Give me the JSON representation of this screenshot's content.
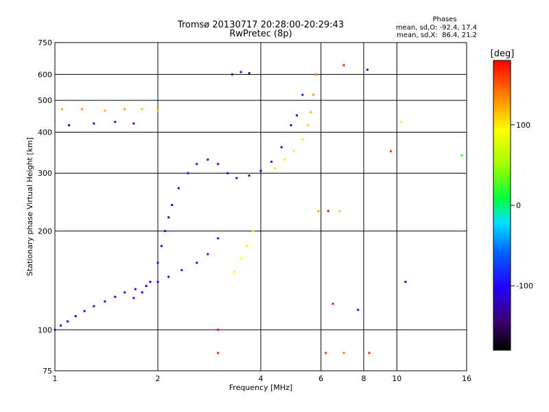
{
  "chart_data": {
    "type": "scatter",
    "title": "Tromsø 20130717 20:28:00-20:29:43",
    "subtitle": "RwPretec (8p)",
    "stats": {
      "heading": "Phases",
      "line_o": "mean, sd,O: -92.4, 17.4",
      "line_x": "mean, sd,X:  86.4, 21.2"
    },
    "xlabel": "Frequency [MHz]",
    "ylabel": "Stationary phase Virtual Height [km]",
    "x_scale": "log",
    "y_scale": "log",
    "xlim": [
      1,
      16
    ],
    "ylim": [
      75,
      750
    ],
    "x_ticks": [
      {
        "v": 1,
        "label": "1"
      },
      {
        "v": 2,
        "label": "2"
      },
      {
        "v": 4,
        "label": "4"
      },
      {
        "v": 6,
        "label": "6"
      },
      {
        "v": 8,
        "label": "8"
      },
      {
        "v": 10,
        "label": "10"
      },
      {
        "v": 16,
        "label": "16"
      }
    ],
    "x_grid": [
      2,
      4,
      6,
      8,
      10
    ],
    "y_ticks": [
      {
        "v": 75,
        "label": "75"
      },
      {
        "v": 100,
        "label": "100"
      },
      {
        "v": 200,
        "label": "200"
      },
      {
        "v": 300,
        "label": "300"
      },
      {
        "v": 400,
        "label": "400"
      },
      {
        "v": 500,
        "label": "500"
      },
      {
        "v": 600,
        "label": "600"
      },
      {
        "v": 750,
        "label": "750"
      }
    ],
    "y_grid": [
      100,
      200,
      300,
      400,
      500,
      600
    ],
    "colorbar": {
      "title": "[deg]",
      "range": [
        -180,
        180
      ],
      "ticks": [
        {
          "v": 100,
          "label": "100"
        },
        {
          "v": 0,
          "label": "0"
        },
        {
          "v": -100,
          "label": "-100"
        }
      ]
    },
    "grid": true,
    "series": [
      {
        "trace": "o-trace-E-region",
        "points": [
          [
            1.0,
            100,
            -95
          ],
          [
            1.04,
            103,
            -98
          ],
          [
            1.09,
            106,
            -100
          ],
          [
            1.15,
            110,
            -100
          ],
          [
            1.22,
            114,
            -102
          ],
          [
            1.3,
            118,
            -105
          ],
          [
            1.4,
            122,
            -100
          ],
          [
            1.5,
            126,
            -98
          ],
          [
            1.6,
            130,
            -105
          ],
          [
            1.72,
            133,
            -100
          ],
          [
            1.85,
            136,
            -110
          ],
          [
            2.0,
            140,
            -105
          ],
          [
            2.15,
            145,
            -95
          ],
          [
            2.35,
            152,
            -100
          ],
          [
            2.6,
            160,
            -98
          ],
          [
            2.8,
            170,
            -100
          ],
          [
            3.0,
            190,
            -110
          ]
        ]
      },
      {
        "trace": "o-trace-F1",
        "points": [
          [
            1.7,
            125,
            -100
          ],
          [
            1.8,
            130,
            -110
          ],
          [
            1.9,
            140,
            -100
          ],
          [
            2.0,
            160,
            -95
          ],
          [
            2.05,
            180,
            -100
          ],
          [
            2.1,
            200,
            -105
          ],
          [
            2.15,
            220,
            -110
          ],
          [
            2.2,
            240,
            -100
          ],
          [
            2.3,
            270,
            -115
          ],
          [
            2.45,
            300,
            -100
          ],
          [
            2.6,
            320,
            -105
          ],
          [
            2.8,
            330,
            -110
          ],
          [
            3.0,
            320,
            -120
          ],
          [
            3.2,
            300,
            -115
          ],
          [
            3.4,
            290,
            -125
          ],
          [
            3.7,
            295,
            -125
          ],
          [
            4.0,
            305,
            -115
          ],
          [
            4.3,
            325,
            -105
          ],
          [
            4.6,
            360,
            -105
          ],
          [
            4.9,
            420,
            -110
          ],
          [
            5.1,
            450,
            -100
          ],
          [
            5.3,
            520,
            -110
          ]
        ]
      },
      {
        "trace": "x-trace-F",
        "points": [
          [
            3.35,
            150,
            95
          ],
          [
            3.5,
            165,
            90
          ],
          [
            3.65,
            180,
            85
          ],
          [
            3.8,
            200,
            80
          ],
          [
            4.4,
            310,
            70
          ],
          [
            4.7,
            330,
            80
          ],
          [
            5.0,
            350,
            90
          ],
          [
            5.3,
            380,
            100
          ],
          [
            5.5,
            420,
            110
          ],
          [
            5.6,
            460,
            120
          ],
          [
            5.7,
            520,
            130
          ],
          [
            5.8,
            600,
            140
          ]
        ]
      },
      {
        "trace": "o-trace-upper",
        "points": [
          [
            1.05,
            470,
            120
          ],
          [
            1.2,
            470,
            130
          ],
          [
            1.4,
            465,
            120
          ],
          [
            1.6,
            470,
            125
          ],
          [
            1.8,
            470,
            115
          ],
          [
            2.0,
            465,
            110
          ],
          [
            1.1,
            420,
            -120
          ],
          [
            1.3,
            425,
            -110
          ],
          [
            1.5,
            430,
            -100
          ],
          [
            1.7,
            425,
            -105
          ],
          [
            3.3,
            600,
            -120
          ],
          [
            3.5,
            610,
            -110
          ],
          [
            3.7,
            605,
            -115
          ]
        ]
      },
      {
        "trace": "scattered",
        "points": [
          [
            6.3,
            230,
            170
          ],
          [
            6.8,
            230,
            50
          ],
          [
            7.0,
            640,
            170
          ],
          [
            8.2,
            620,
            -100
          ],
          [
            9.6,
            350,
            160
          ],
          [
            10.3,
            430,
            80
          ],
          [
            10.6,
            140,
            -110
          ],
          [
            15.5,
            340,
            20
          ],
          [
            5.9,
            230,
            120
          ],
          [
            6.5,
            120,
            170
          ],
          [
            7.7,
            115,
            -100
          ],
          [
            8.3,
            85,
            170
          ],
          [
            6.2,
            85,
            160
          ],
          [
            7.0,
            85,
            140
          ],
          [
            3.0,
            100,
            175
          ],
          [
            3.0,
            85,
            170
          ]
        ]
      }
    ]
  }
}
